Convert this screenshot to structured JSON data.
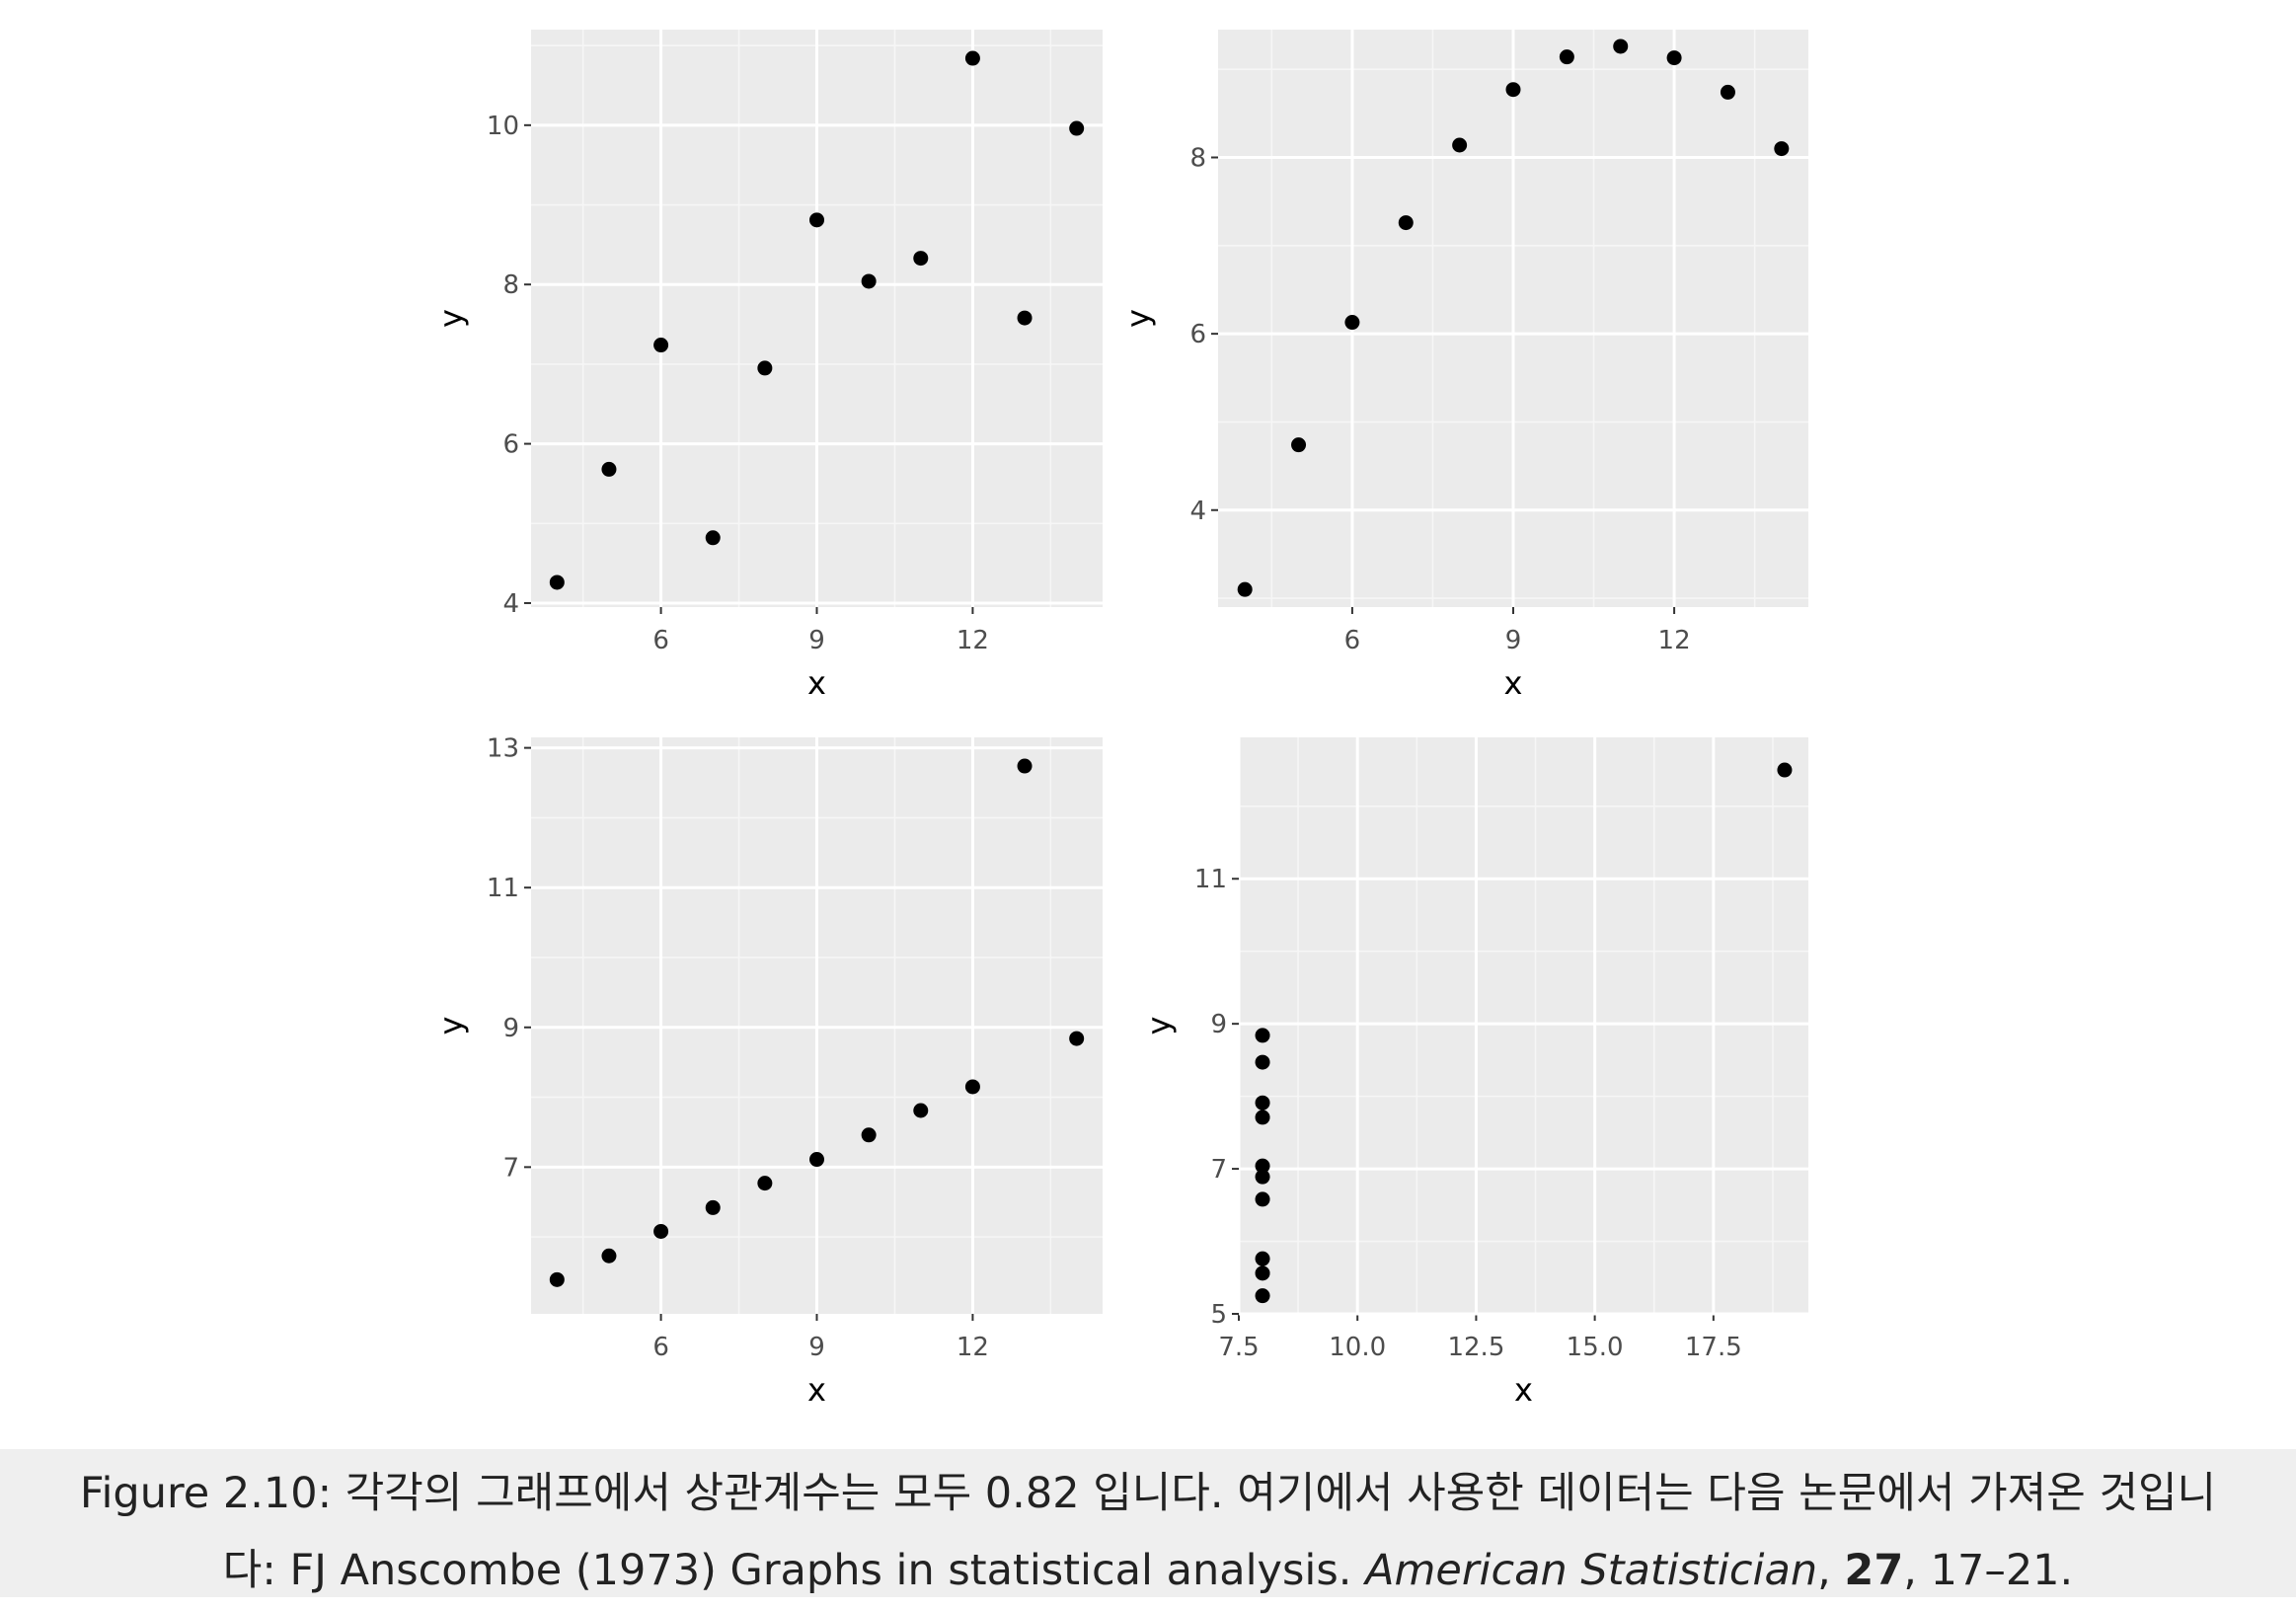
{
  "chart_data": [
    {
      "type": "scatter",
      "xlabel": "x",
      "ylabel": "y",
      "xlim": [
        3.5,
        14.5
      ],
      "ylim": [
        3.95,
        11.2
      ],
      "xticks": [
        6,
        9,
        12
      ],
      "yticks": [
        4,
        6,
        8,
        10
      ],
      "xtick_labels": [
        "6",
        "9",
        "12"
      ],
      "ytick_labels": [
        "4",
        "6",
        "8",
        "10"
      ],
      "grid": true,
      "x": [
        4,
        5,
        6,
        7,
        8,
        9,
        10,
        11,
        12,
        13,
        14
      ],
      "y": [
        4.26,
        5.68,
        7.24,
        4.82,
        6.95,
        8.81,
        8.04,
        8.33,
        10.84,
        7.58,
        9.96
      ]
    },
    {
      "type": "scatter",
      "xlabel": "x",
      "ylabel": "y",
      "xlim": [
        3.5,
        14.5
      ],
      "ylim": [
        2.9,
        9.45
      ],
      "xticks": [
        6,
        9,
        12
      ],
      "yticks": [
        4,
        6,
        8
      ],
      "xtick_labels": [
        "6",
        "9",
        "12"
      ],
      "ytick_labels": [
        "4",
        "6",
        "8"
      ],
      "grid": true,
      "x": [
        4,
        5,
        6,
        7,
        8,
        9,
        10,
        11,
        12,
        13,
        14
      ],
      "y": [
        3.1,
        4.74,
        6.13,
        7.26,
        8.14,
        8.77,
        9.14,
        9.26,
        9.13,
        8.74,
        8.1
      ]
    },
    {
      "type": "scatter",
      "xlabel": "x",
      "ylabel": "y",
      "xlim": [
        3.5,
        14.5
      ],
      "ylim": [
        4.9,
        13.15
      ],
      "xticks": [
        6,
        9,
        12
      ],
      "yticks": [
        7,
        9,
        11,
        13
      ],
      "xtick_labels": [
        "6",
        "9",
        "12"
      ],
      "ytick_labels": [
        "7",
        "9",
        "11",
        "13"
      ],
      "grid": true,
      "x": [
        4,
        5,
        6,
        7,
        8,
        9,
        10,
        11,
        12,
        13,
        14
      ],
      "y": [
        5.39,
        5.73,
        6.08,
        6.42,
        6.77,
        7.11,
        7.46,
        7.81,
        8.15,
        12.74,
        8.84
      ]
    },
    {
      "type": "scatter",
      "xlabel": "x",
      "ylabel": "y",
      "xlim": [
        7.5,
        19.5
      ],
      "ylim": [
        5.0,
        12.95
      ],
      "xticks": [
        7.5,
        10.0,
        12.5,
        15.0,
        17.5
      ],
      "yticks": [
        5,
        7,
        9,
        11
      ],
      "xtick_labels": [
        "7.5",
        "10.0",
        "12.5",
        "15.0",
        "17.5"
      ],
      "ytick_labels": [
        "5",
        "7",
        "9",
        "11"
      ],
      "grid": true,
      "x": [
        8,
        8,
        8,
        8,
        8,
        8,
        8,
        19,
        8,
        8,
        8
      ],
      "y": [
        6.58,
        5.76,
        7.71,
        8.84,
        8.47,
        7.04,
        5.25,
        12.5,
        5.56,
        7.91,
        6.89
      ]
    }
  ],
  "caption": {
    "line1": "Figure 2.10: 각각의 그래프에서 상관계수는 모두 0.82 입니다. 여기에서 사용한 데이터는 다음 논문에서 가져온 것입니",
    "line2_prefix": "다: FJ Anscombe (1973) Graphs in statistical analysis. ",
    "journal": "American Statistician",
    "sep1": ", ",
    "volume": "27",
    "sep2": ", ",
    "pages": "17–21."
  }
}
